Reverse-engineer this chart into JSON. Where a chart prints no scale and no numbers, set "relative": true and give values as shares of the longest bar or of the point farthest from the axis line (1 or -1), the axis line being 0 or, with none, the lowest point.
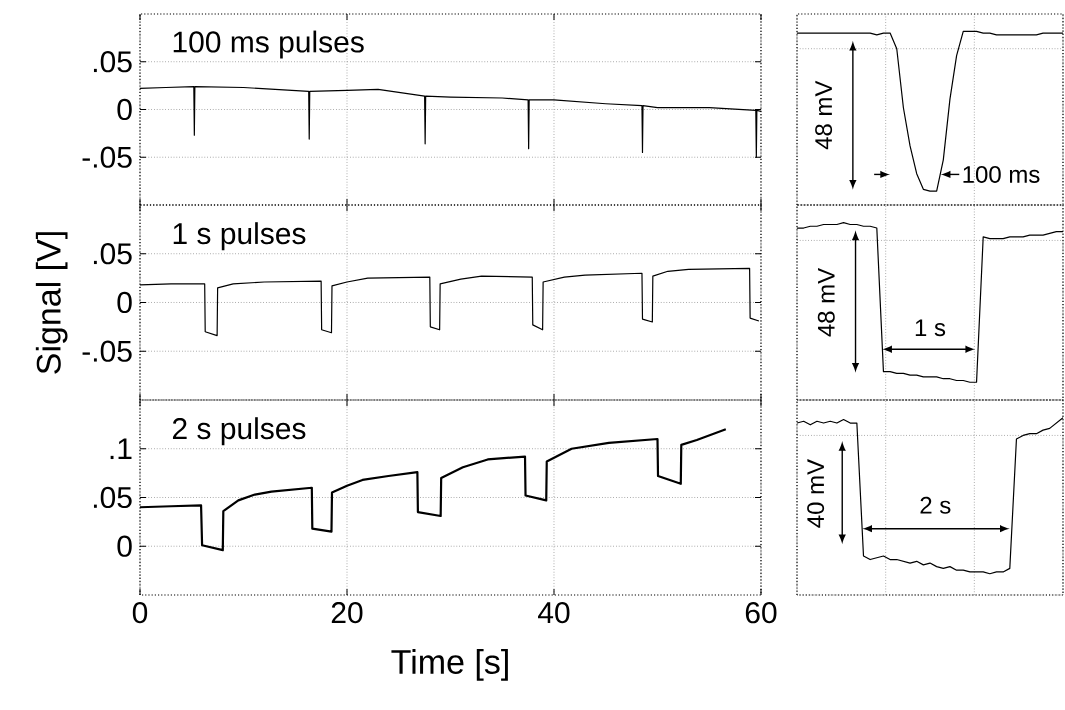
{
  "chart_data": [
    {
      "type": "line",
      "title": "100 ms pulses",
      "color": "#000000",
      "grid": true,
      "tick_labels": "y",
      "xlim": [
        0,
        60
      ],
      "ylim": [
        -0.1,
        0.1
      ],
      "xticks": [
        0,
        20,
        40,
        60
      ],
      "yticks": [
        {
          "value": -0.05,
          "label": "-.05"
        },
        0,
        {
          "value": 0.05,
          "label": ".05"
        }
      ],
      "x": [
        0,
        2.5,
        5.2,
        5.25,
        5.3,
        10,
        16.3,
        16.35,
        16.4,
        20,
        23,
        27.5,
        27.55,
        27.6,
        30,
        35,
        37.5,
        37.55,
        37.6,
        40,
        45,
        48.5,
        48.55,
        48.6,
        50,
        55,
        59.5,
        59.55,
        59.6,
        60
      ],
      "values": [
        0.022,
        0.023,
        0.024,
        -0.027,
        0.024,
        0.023,
        0.019,
        -0.031,
        0.019,
        0.02,
        0.021,
        0.014,
        -0.036,
        0.014,
        0.013,
        0.012,
        0.01,
        -0.041,
        0.01,
        0.01,
        0.006,
        0.004,
        -0.045,
        0.004,
        0.002,
        0.002,
        -0.001,
        -0.05,
        -0.001,
        -0.002
      ]
    },
    {
      "type": "line",
      "relative": true,
      "color": "#000000",
      "grid": true,
      "tick_labels": false,
      "annotations": [
        "48 mV",
        "100 ms"
      ],
      "categories": [
        null,
        null,
        null,
        null,
        null,
        null,
        null,
        null,
        null,
        null,
        null,
        null,
        null,
        null,
        null,
        null,
        null,
        null,
        null,
        null,
        null,
        null,
        null,
        null,
        null,
        null,
        null,
        null,
        null,
        null,
        null,
        null,
        null,
        null,
        null,
        null,
        null,
        null,
        null,
        null,
        null
      ],
      "values": [
        0.99,
        0.99,
        0.99,
        0.99,
        0.99,
        0.99,
        0.99,
        0.99,
        0.99,
        0.99,
        0.99,
        0.99,
        0.98,
        0.99,
        0.99,
        0.9,
        0.56,
        0.34,
        0.18,
        0.09,
        0.08,
        0.08,
        0.26,
        0.61,
        0.86,
        1.0,
        1.0,
        1.0,
        0.99,
        0.99,
        0.98,
        0.98,
        0.98,
        0.98,
        0.98,
        0.98,
        0.98,
        0.99,
        0.99,
        0.99,
        0.99
      ]
    },
    {
      "type": "line",
      "title": "1 s pulses",
      "ylabel": "Signal [V]",
      "color": "#000000",
      "grid": true,
      "tick_labels": "y",
      "xlim": [
        0,
        60
      ],
      "ylim": [
        -0.1,
        0.1
      ],
      "xticks": [
        0,
        20,
        40,
        60
      ],
      "yticks": [
        {
          "value": -0.05,
          "label": "-.05"
        },
        0,
        {
          "value": 0.05,
          "label": ".05"
        }
      ],
      "x": [
        0,
        3,
        6.25,
        6.3,
        7.45,
        7.5,
        9,
        12,
        17.5,
        17.55,
        18.5,
        18.55,
        20,
        22,
        28,
        28.05,
        28.95,
        29,
        31,
        33,
        37.9,
        37.95,
        38.9,
        38.95,
        41,
        43,
        48.5,
        48.55,
        49.5,
        49.55,
        51,
        53,
        58.9,
        58.95,
        59.8
      ],
      "values": [
        0.018,
        0.019,
        0.019,
        -0.03,
        -0.034,
        0.015,
        0.019,
        0.021,
        0.022,
        -0.028,
        -0.031,
        0.017,
        0.021,
        0.025,
        0.026,
        -0.025,
        -0.028,
        0.019,
        0.024,
        0.027,
        0.026,
        -0.023,
        -0.028,
        0.021,
        0.026,
        0.028,
        0.03,
        -0.017,
        -0.02,
        0.027,
        0.032,
        0.034,
        0.035,
        -0.016,
        -0.019
      ]
    },
    {
      "type": "line",
      "relative": true,
      "color": "#000000",
      "grid": true,
      "tick_labels": false,
      "annotations": [
        "48 mV",
        "1 s"
      ],
      "categories": [
        null,
        null,
        null,
        null,
        null,
        null,
        null,
        null,
        null,
        null,
        null,
        null,
        null,
        null,
        null,
        null,
        null,
        null,
        null,
        null,
        null,
        null,
        null,
        null,
        null,
        null,
        null,
        null,
        null,
        null,
        null,
        null,
        null,
        null,
        null,
        null,
        null,
        null,
        null,
        null,
        null
      ],
      "values": [
        0.97,
        0.97,
        0.98,
        0.98,
        0.99,
        0.99,
        0.99,
        1.0,
        0.99,
        0.99,
        0.98,
        0.98,
        0.97,
        0.16,
        0.16,
        0.15,
        0.15,
        0.14,
        0.14,
        0.13,
        0.13,
        0.13,
        0.12,
        0.12,
        0.11,
        0.11,
        0.1,
        0.1,
        0.92,
        0.91,
        0.91,
        0.91,
        0.92,
        0.92,
        0.92,
        0.93,
        0.93,
        0.93,
        0.94,
        0.95,
        0.95
      ]
    },
    {
      "type": "line",
      "title": "2 s pulses",
      "xlabel": "Time [s]",
      "color": "#000000",
      "grid": true,
      "xlim": [
        0,
        60
      ],
      "ylim": [
        -0.05,
        0.15
      ],
      "xticks": [
        0,
        20,
        40,
        60
      ],
      "yticks": [
        0,
        {
          "value": 0.05,
          "label": ".05"
        },
        {
          "value": 0.1,
          "label": ".1"
        }
      ],
      "x": [
        0,
        3,
        5.9,
        6.0,
        8.0,
        8.05,
        9.5,
        11.1,
        12.7,
        16.6,
        16.65,
        18.5,
        18.55,
        20,
        21.5,
        24,
        26.8,
        26.85,
        29.05,
        29.1,
        31.2,
        33.6,
        37.2,
        37.25,
        39.25,
        39.3,
        41.7,
        45.3,
        50.0,
        50.05,
        52.25,
        52.3,
        53.8,
        56.6
      ],
      "values": [
        0.04,
        0.041,
        0.042,
        0.001,
        -0.004,
        0.036,
        0.047,
        0.053,
        0.056,
        0.06,
        0.018,
        0.015,
        0.055,
        0.062,
        0.068,
        0.072,
        0.076,
        0.035,
        0.031,
        0.07,
        0.081,
        0.089,
        0.092,
        0.052,
        0.047,
        0.087,
        0.1,
        0.106,
        0.11,
        0.072,
        0.064,
        0.104,
        0.109,
        0.12
      ]
    },
    {
      "type": "line",
      "relative": true,
      "color": "#000000",
      "grid": true,
      "tick_labels": false,
      "annotations": [
        "40 mV",
        "2 s"
      ],
      "categories": [
        null,
        null,
        null,
        null,
        null,
        null,
        null,
        null,
        null,
        null,
        null,
        null,
        null,
        null,
        null,
        null,
        null,
        null,
        null,
        null,
        null,
        null,
        null,
        null,
        null,
        null,
        null,
        null,
        null,
        null,
        null,
        null,
        null,
        null,
        null,
        null,
        null,
        null,
        null,
        null,
        null
      ],
      "values": [
        0.97,
        0.98,
        0.96,
        0.98,
        0.97,
        0.98,
        0.97,
        0.99,
        0.97,
        0.97,
        0.22,
        0.2,
        0.21,
        0.22,
        0.2,
        0.2,
        0.19,
        0.18,
        0.19,
        0.17,
        0.18,
        0.16,
        0.15,
        0.16,
        0.14,
        0.14,
        0.13,
        0.13,
        0.13,
        0.12,
        0.13,
        0.13,
        0.15,
        0.88,
        0.9,
        0.91,
        0.91,
        0.93,
        0.94,
        0.97,
        1.0
      ]
    }
  ]
}
